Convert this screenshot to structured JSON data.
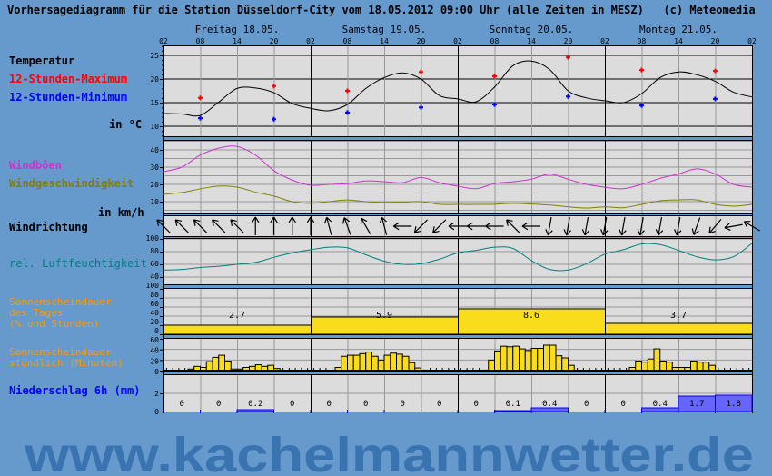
{
  "title": "Vorhersagediagramm für die Station Düsseldorf-City vom 18.05.2012 09:00 Uhr (alle Zeiten in MESZ)   (c) Meteomedia",
  "watermark": "www.kachelmannwetter.de",
  "colors": {
    "background": "#6699cc",
    "plot": "#dcdcdc",
    "max": "#ff0000",
    "min": "#0000ff",
    "gusts": "#cc33cc",
    "wind": "#808000",
    "humidity": "#008080",
    "sunshine": "#f9dc1c",
    "precip_fill": "#6666ff",
    "precip_line": "#0000ff",
    "watermark": "#3a74b0"
  },
  "labels": {
    "temperature": "Temperatur",
    "max": "12-Stunden-Maximum",
    "min": "12-Stunden-Minimum",
    "temp_unit": "in °C",
    "gusts": "Windböen",
    "wind_speed": "Windgeschwindigkeit",
    "wind_unit": "in km/h",
    "wind_dir": "Windrichtung",
    "humidity": "rel. Luftfeuchtigkeit",
    "sun_daily_1": "Sonnenscheindauer",
    "sun_daily_2": "des Tages",
    "sun_daily_3": "(% und Stunden)",
    "sun_hourly_1": "Sonnenscheindauer",
    "sun_hourly_2": "stündlich (Minuten)",
    "precip": "Niederschlag 6h (mm)"
  },
  "chart_data": {
    "type": "line",
    "days": [
      "Freitag 18.05.",
      "Samstag 19.05.",
      "Sonntag 20.05.",
      "Montag 21.05."
    ],
    "hour_ticks": [
      "02",
      "08",
      "14",
      "20",
      "02",
      "08",
      "14",
      "20",
      "02",
      "08",
      "14",
      "20",
      "02",
      "08",
      "14",
      "20",
      "02"
    ],
    "times_3h_start": "18.05. 02:00",
    "time_step_hours": 3,
    "temperature": {
      "ylim": [
        8,
        27
      ],
      "ticks": [
        "25",
        "20",
        "15",
        "10"
      ],
      "tick_values": [
        25,
        20,
        15,
        10
      ],
      "curve": [
        12.7,
        12.6,
        12.3,
        15.1,
        18.0,
        18.1,
        17.1,
        14.8,
        13.8,
        13.3,
        14.6,
        18.0,
        20.3,
        21.3,
        20.0,
        16.5,
        15.8,
        15.2,
        18.3,
        22.8,
        23.8,
        22.0,
        17.5,
        16.0,
        15.4,
        15.0,
        16.9,
        20.3,
        21.5,
        20.9,
        19.5,
        17.2,
        16.2
      ],
      "max_times": [
        "18.05. 08",
        "18.05. 20",
        "19.05. 08",
        "19.05. 20",
        "20.05. 08",
        "20.05. 20",
        "21.05. 08",
        "21.05. 20"
      ],
      "max": [
        16.0,
        18.5,
        17.5,
        21.5,
        20.6,
        24.6,
        21.9,
        21.7
      ],
      "min": [
        11.7,
        11.5,
        12.9,
        14.0,
        14.6,
        16.3,
        14.4,
        15.8
      ]
    },
    "wind": {
      "ylim": [
        3,
        45
      ],
      "ticks": [
        "40",
        "30",
        "20",
        "10"
      ],
      "tick_values": [
        40,
        30,
        20,
        10
      ],
      "gusts": [
        27.4,
        30,
        37,
        41,
        42,
        37,
        28,
        22.5,
        19.5,
        20,
        20.5,
        22,
        21.6,
        21,
        24,
        21,
        19,
        17.5,
        20.5,
        21.5,
        23,
        26,
        23,
        20,
        18.4,
        17.5,
        20,
        23.5,
        26,
        29,
        26,
        20,
        18.4
      ],
      "speed": [
        14.2,
        15.3,
        17.4,
        19,
        18.4,
        15.5,
        13.2,
        10,
        9,
        10,
        11,
        10,
        9.5,
        9.7,
        10,
        8.5,
        8.4,
        8.4,
        8.5,
        9,
        8.6,
        8,
        7,
        6.3,
        7,
        6.5,
        8.4,
        10.5,
        11,
        11,
        8.4,
        7.4,
        8.4
      ]
    },
    "wind_direction_from_deg": [
      135,
      135,
      135,
      135,
      135,
      180,
      180,
      180,
      180,
      165,
      160,
      150,
      165,
      90,
      45,
      45,
      90,
      90,
      90,
      135,
      90,
      10,
      10,
      10,
      10,
      10,
      10,
      10,
      10,
      20,
      40,
      80,
      120
    ],
    "humidity": {
      "ylim": [
        30,
        100
      ],
      "ticks": [
        "100",
        "80",
        "60",
        "40"
      ],
      "tick_values": [
        100,
        80,
        60,
        40
      ],
      "values": [
        51,
        52,
        55,
        57,
        60,
        63,
        71,
        78,
        83,
        87,
        86,
        75,
        65,
        60,
        61,
        68,
        78,
        82,
        87,
        85,
        66,
        52,
        51,
        61,
        76,
        83,
        92,
        91,
        82,
        72,
        67,
        72,
        93
      ]
    },
    "sunshine_daily": {
      "ylim": [
        0,
        100
      ],
      "ticks": [
        "100",
        "80",
        "60",
        "40",
        "20",
        "0"
      ],
      "tick_values": [
        100,
        80,
        60,
        40,
        20,
        0
      ],
      "percent": [
        20,
        38,
        56,
        24
      ],
      "hours_labels": [
        "2.7",
        "5.9",
        "8.6",
        "3.7"
      ]
    },
    "sunshine_hourly": {
      "ylim": [
        0,
        60
      ],
      "ticks": [
        "60",
        "40",
        "20",
        "0"
      ],
      "tick_values": [
        60,
        40,
        20,
        0
      ],
      "minutes_per_day_from_02h": [
        [
          0,
          0,
          0,
          0,
          3,
          8,
          6,
          17,
          25,
          29,
          18,
          3,
          3,
          6,
          8,
          11,
          8,
          10,
          4,
          0,
          0,
          0,
          0,
          0
        ],
        [
          0,
          0,
          0,
          0,
          6,
          27,
          29,
          29,
          32,
          35,
          27,
          20,
          29,
          33,
          31,
          27,
          15,
          5,
          1,
          0,
          0,
          0,
          0,
          0
        ],
        [
          0,
          0,
          0,
          0,
          1,
          20,
          37,
          46,
          45,
          46,
          41,
          38,
          42,
          42,
          48,
          48,
          28,
          24,
          10,
          0,
          0,
          0,
          0,
          0
        ],
        [
          0,
          0,
          0,
          0,
          6,
          18,
          16,
          22,
          41,
          18,
          16,
          6,
          6,
          6,
          18,
          16,
          16,
          10,
          0,
          0,
          0,
          0,
          0,
          0
        ]
      ]
    },
    "precipitation_6h": {
      "ylim": [
        0,
        4
      ],
      "ticks": [
        "2",
        "0"
      ],
      "tick_values": [
        2,
        0
      ],
      "values": [
        0,
        0,
        0.2,
        0,
        0,
        0,
        0,
        0,
        0,
        0.1,
        0.4,
        0,
        0,
        0.4,
        1.7,
        1.8
      ],
      "labels": [
        "0",
        "0",
        "0.2",
        "0",
        "0",
        "0",
        "0",
        "0",
        "0",
        "0.1",
        "0.4",
        "0",
        "0",
        "0.4",
        "1.7",
        "1.8"
      ]
    }
  }
}
